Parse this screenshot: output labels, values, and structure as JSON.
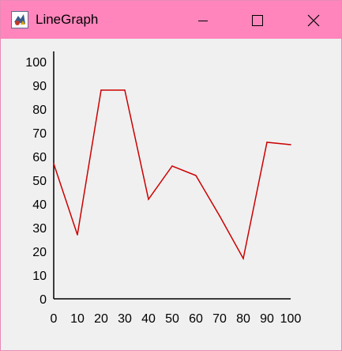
{
  "window": {
    "title": "LineGraph",
    "controls": {
      "minimize_icon": "minimize-icon",
      "maximize_icon": "maximize-icon",
      "close_icon": "close-icon"
    },
    "titlebar_color": "#ff85bc"
  },
  "chart_data": {
    "type": "line",
    "title": "",
    "xlabel": "",
    "ylabel": "",
    "x_ticks": [
      "0",
      "10",
      "20",
      "30",
      "40",
      "50",
      "60",
      "70",
      "80",
      "90",
      "100"
    ],
    "y_ticks": [
      "0",
      "10",
      "20",
      "30",
      "40",
      "50",
      "60",
      "70",
      "80",
      "90",
      "100"
    ],
    "xlim": [
      0,
      100
    ],
    "ylim": [
      0,
      100
    ],
    "grid": false,
    "series": [
      {
        "color": "#cc0000",
        "x": [
          0,
          10,
          20,
          30,
          40,
          50,
          60,
          70,
          80,
          90,
          100
        ],
        "y": [
          57,
          27,
          88,
          88,
          42,
          56,
          52,
          35,
          17,
          66,
          65
        ]
      }
    ]
  }
}
